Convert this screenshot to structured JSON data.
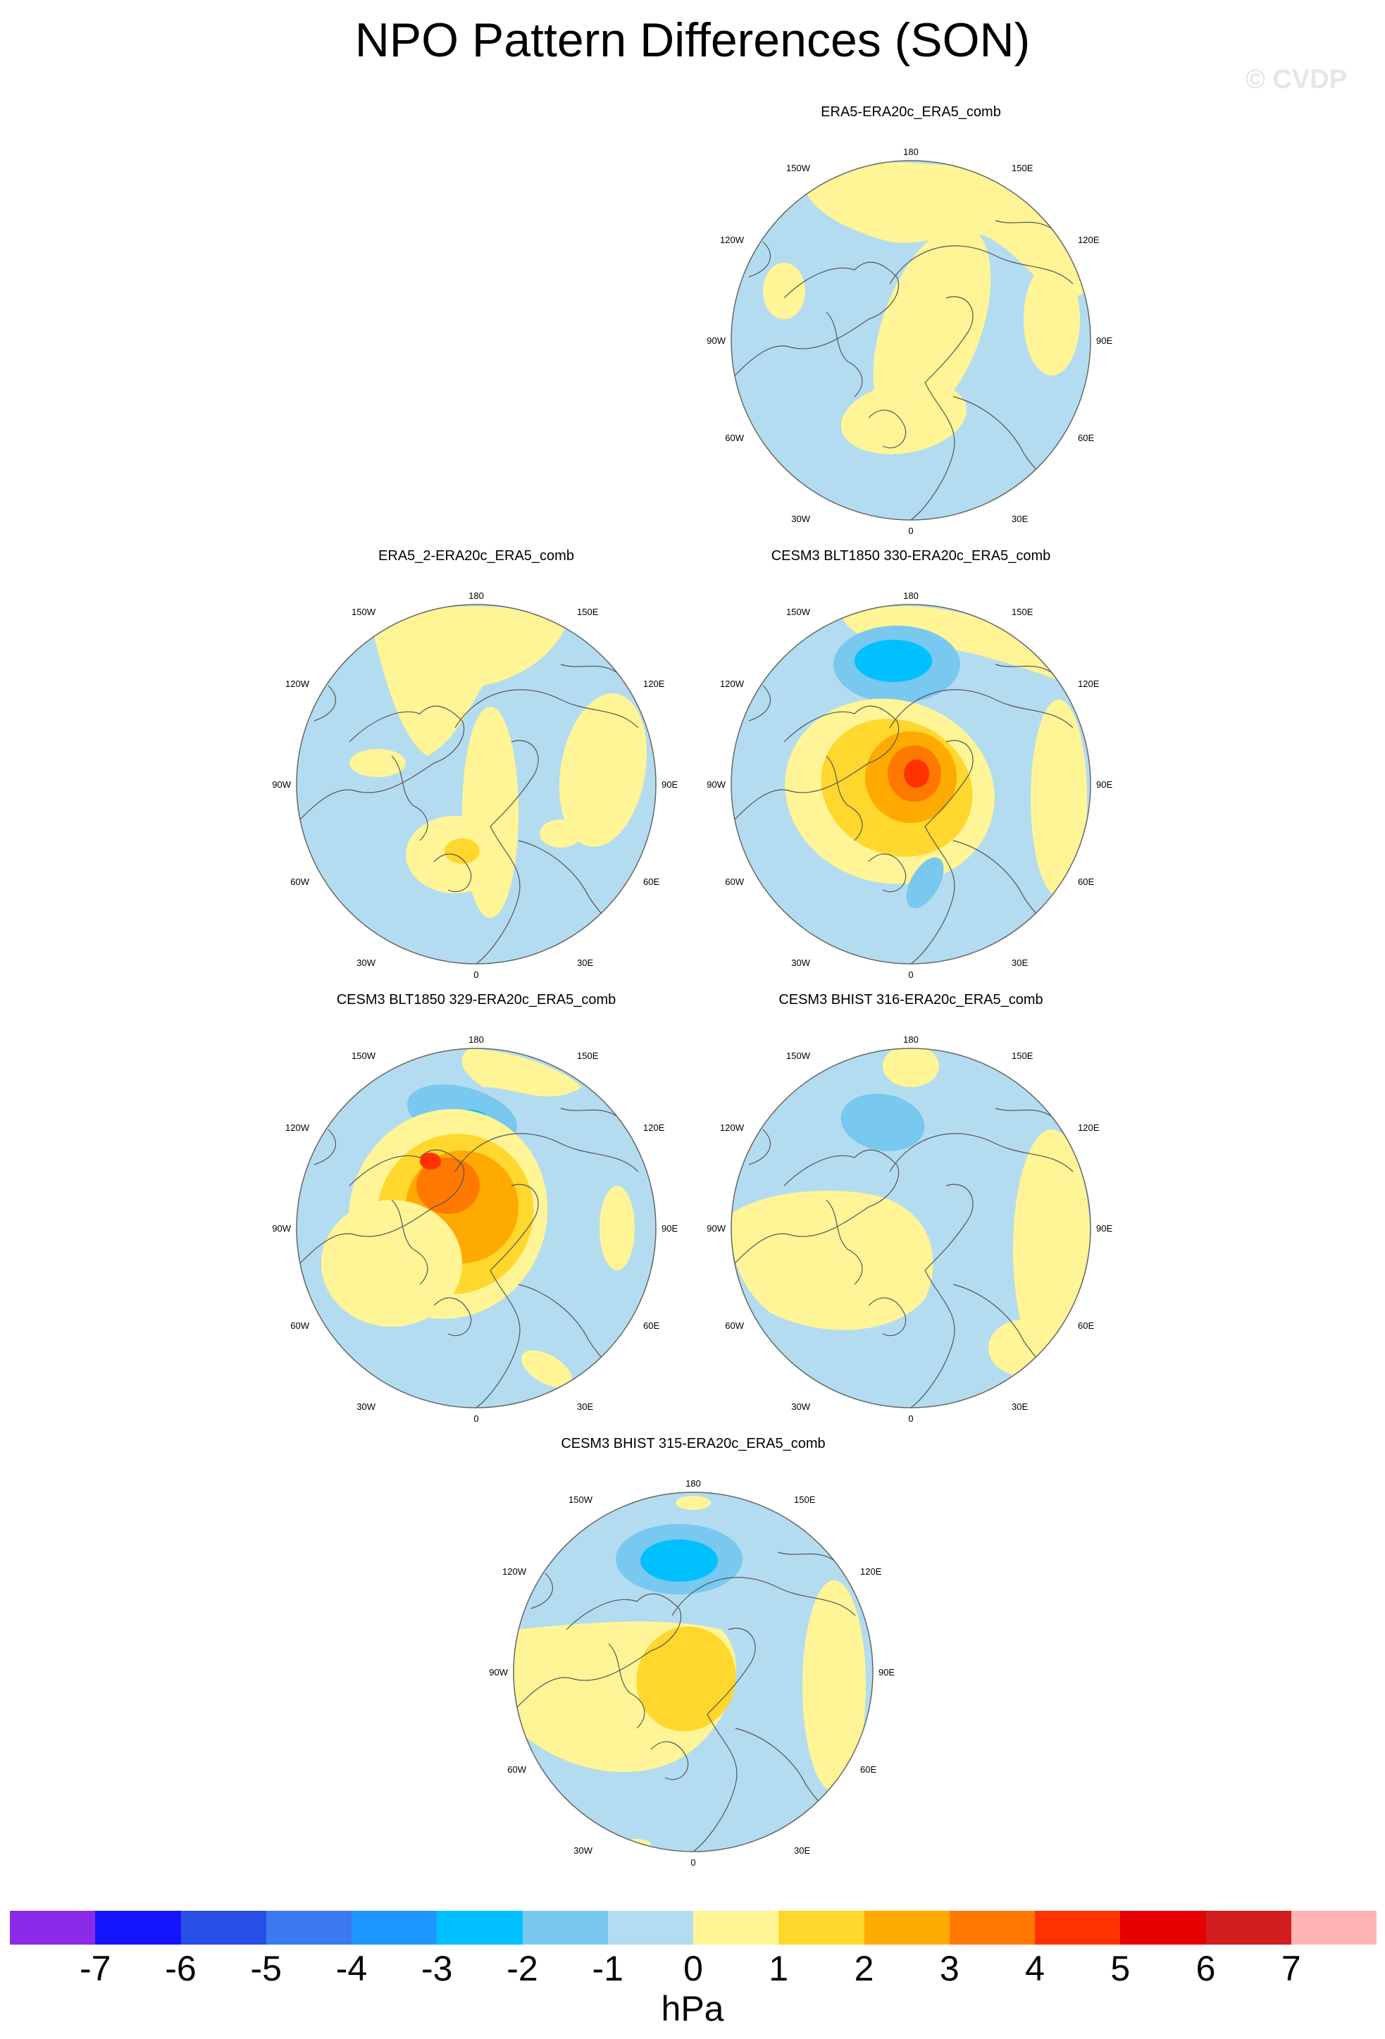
{
  "title": "NPO Pattern Differences (SON)",
  "watermark": "© CVDP",
  "units": "hPa",
  "lon_labels": {
    "top": "180",
    "bottom": "0",
    "left": "90W",
    "right": "90E",
    "upper_left_outer": "150W",
    "upper_left_inner": "120W",
    "upper_right_outer": "150E",
    "upper_right_inner": "120E",
    "lower_left_outer": "30W",
    "lower_left_inner": "60W",
    "lower_right_outer": "30E",
    "lower_right_inner": "60E"
  },
  "panels": [
    {
      "title": "ERA5-ERA20c_ERA5_comb",
      "pattern": "weak"
    },
    {
      "title": "ERA5_2-ERA20c_ERA5_comb",
      "pattern": "weak2"
    },
    {
      "title": "CESM3 BLT1850 330-ERA20c_ERA5_comb",
      "pattern": "strong"
    },
    {
      "title": "CESM3 BLT1850 329-ERA20c_ERA5_comb",
      "pattern": "strong2"
    },
    {
      "title": "CESM3 BHIST 316-ERA20c_ERA5_comb",
      "pattern": "moderate"
    },
    {
      "title": "CESM3 BHIST 315-ERA20c_ERA5_comb",
      "pattern": "moderate2"
    }
  ],
  "colorbar": {
    "levels": [
      "-7",
      "-6",
      "-5",
      "-4",
      "-3",
      "-2",
      "-1",
      "0",
      "1",
      "2",
      "3",
      "4",
      "5",
      "6",
      "7"
    ],
    "colors": [
      "#8b2ae8",
      "#1414ff",
      "#2850e6",
      "#3c78f0",
      "#1e96ff",
      "#00c0ff",
      "#78c8f0",
      "#b4dcf0",
      "#fff596",
      "#ffd72d",
      "#ffaa00",
      "#ff7800",
      "#ff3200",
      "#e60000",
      "#d21e1e",
      "#ffb4b4"
    ]
  },
  "colors": {
    "ocean_neg": "#b4dcf0",
    "pos1": "#fff596",
    "pos2": "#ffd72d",
    "pos3": "#ffaa00",
    "pos4": "#ff7800",
    "pos5": "#ff3200",
    "neg2": "#78c8f0",
    "neg3": "#00c0ff",
    "coast": "#555555"
  }
}
